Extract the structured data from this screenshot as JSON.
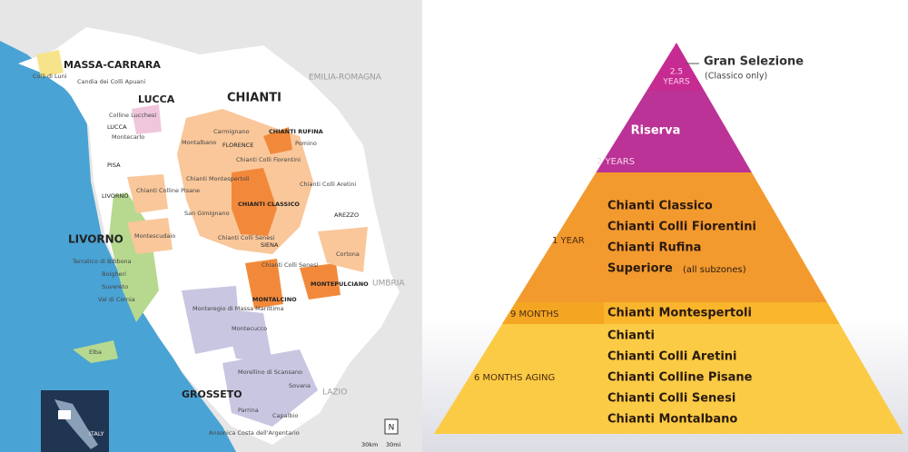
{
  "map": {
    "regions": [
      "MASSA-CARRARA",
      "LUCCA",
      "CHIANTI",
      "LIVORNO",
      "GROSSETO",
      "EMILIA-ROMAGNA",
      "UMBRIA",
      "LAZIO"
    ],
    "towns": [
      "LUCCA",
      "FLORENCE",
      "PISA",
      "LIVORNO",
      "AREZZO",
      "SIENA",
      "ITALY"
    ],
    "zones": [
      "Colli di Luni",
      "Candia dei Colli Apuani",
      "Colline Lucchesi",
      "Montecarlo",
      "Carmignano",
      "Montalbano",
      "CHIANTI RUFINA",
      "Pomino",
      "Chianti Colli Fiorentini",
      "Chianti Colline Pisane",
      "Chianti Montespertoli",
      "Chianti Colli Aretini",
      "CHIANTI CLASSICO",
      "San Gimignano",
      "Montescudaio",
      "Chianti Colli Senesi",
      "Cortona",
      "Terratico di Bibbona",
      "Bolgheri",
      "Suvereto",
      "Val di Cornia",
      "Chianti Colli Senesi",
      "MONTEPULCIANO",
      "Monteregio di Massa Marittima",
      "MONTALCINO",
      "Montecucco",
      "Elba",
      "Morellino di Scansano",
      "Sovana",
      "Parrina",
      "Capalbio",
      "Ansonica Costa dell'Argentario"
    ],
    "north": "N",
    "scale": [
      "30km",
      "30mi"
    ]
  },
  "pyramid": {
    "callout": {
      "title": "Gran Selezione",
      "note": "(Classico only)"
    },
    "tiers": [
      {
        "aging": [
          "2.5",
          "YEARS"
        ]
      },
      {
        "aging": [
          "2 YEARS"
        ],
        "wines": [
          "Riserva"
        ]
      },
      {
        "aging": [
          "1 YEAR"
        ],
        "wines": [
          "Chianti Classico",
          "Chianti Colli Fiorentini",
          "Chianti Rufina",
          "Superiore"
        ],
        "note": "(all subzones)"
      },
      {
        "aging": [
          "9 MONTHS"
        ],
        "wines": [
          "Chianti Montespertoli"
        ]
      },
      {
        "aging": [
          "6 MONTHS AGING"
        ],
        "wines": [
          "Chianti",
          "Chianti Colli Aretini",
          "Chianti Colline Pisane",
          "Chianti Colli Senesi",
          "Chianti Montalbano"
        ]
      }
    ]
  }
}
